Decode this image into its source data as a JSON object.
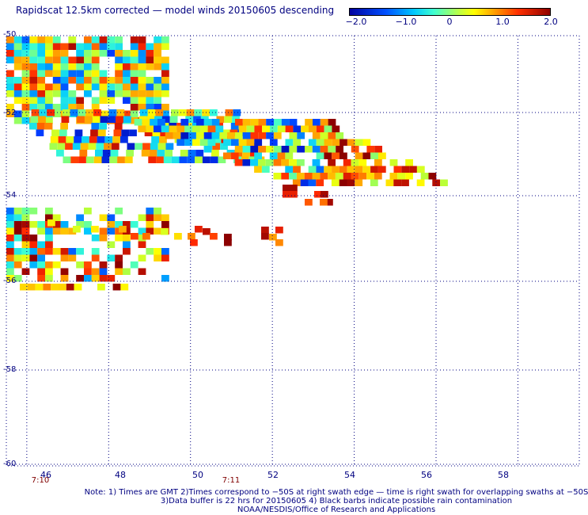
{
  "title": "Rapidscat 12.5km corrected — model winds 20150605 descending",
  "colorbar": {
    "ticks": [
      "−2.0",
      "−1.0",
      "0",
      "1.0",
      "2.0"
    ],
    "tick_values": [
      -2.0,
      -1.0,
      0,
      1.0,
      2.0
    ],
    "range": [
      -2.0,
      2.0
    ],
    "colors": [
      "#0000a0",
      "#0050ff",
      "#00c8ff",
      "#40ffd0",
      "#c0ff40",
      "#ffff00",
      "#ffa000",
      "#ff3000",
      "#900000"
    ]
  },
  "axes": {
    "lat_labels": [
      "-50",
      "-52",
      "-54",
      "-56",
      "-58",
      "-60"
    ],
    "lat_values": [
      -50,
      -52,
      -54,
      -56,
      -58,
      -60
    ],
    "lon_labels": [
      "46",
      "48",
      "50",
      "52",
      "54",
      "56",
      "58"
    ],
    "lon_values": [
      46,
      48,
      50,
      52,
      54,
      56,
      58
    ],
    "lat_range": [
      -60,
      -50
    ],
    "lon_range": [
      45.5,
      59.5
    ],
    "grid": "dotted",
    "projection": "mercator"
  },
  "times": [
    {
      "label": "7:10",
      "lon": 46
    },
    {
      "label": "7:11",
      "lon": 50.8
    }
  ],
  "notes": [
    "Note: 1) Times are GMT 2)Times correspond to −50S at right swath edge — time is right swath for overlapping swaths at −50S",
    "3)Data buffer is 22 hrs for 20150605 4) Black barbs indicate possible rain contamination",
    "NOAA/NESDIS/Office of Research and Applications"
  ],
  "chart_data": {
    "type": "heatmap",
    "cell_size_deg": [
      0.25,
      0.125
    ],
    "note": "",
    "regions": [
      {
        "lon": [
          45.5,
          49.2
        ],
        "lat_top": -50.0,
        "lat_bot": -52.5
      },
      {
        "lon": [
          45.5,
          51.0
        ],
        "lat_top": -52.0,
        "lat_bot": -53.3
      },
      {
        "lon": [
          49.5,
          56.5
        ],
        "lat_top": -52.2,
        "lat_bot": -53.6
      },
      {
        "lon": [
          45.5,
          49.2
        ],
        "lat_top": -54.7,
        "lat_bot": -56.2
      }
    ]
  }
}
